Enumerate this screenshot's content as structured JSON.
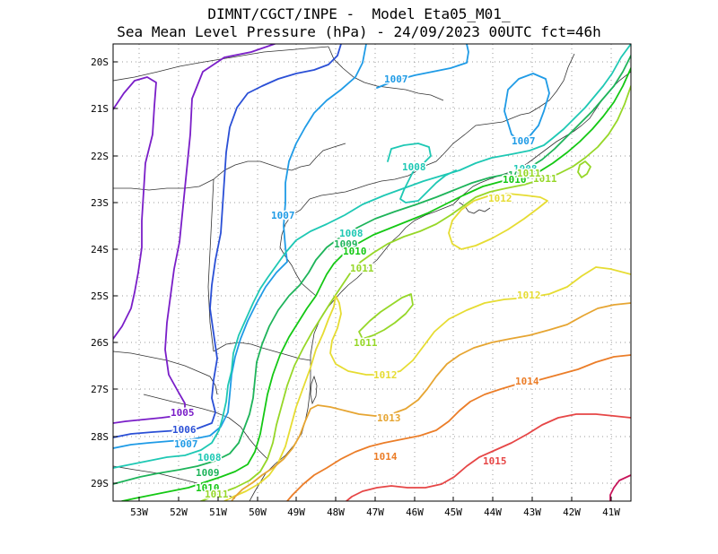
{
  "title": {
    "line1": "DIMNT/CGCT/INPE -  Model Eta05_M01_",
    "line2": "Sea Mean Level Pressure (hPa) - 24/09/2023 00UTC fct=46h"
  },
  "axes": {
    "lat_labels": [
      "20S",
      "21S",
      "22S",
      "23S",
      "24S",
      "25S",
      "26S",
      "27S",
      "28S",
      "29S"
    ],
    "lon_labels": [
      "53W",
      "52W",
      "51W",
      "50W",
      "49W",
      "48W",
      "47W",
      "46W",
      "45W",
      "44W",
      "43W",
      "42W",
      "41W"
    ]
  },
  "contour_labels": [
    {
      "text": "1005",
      "color": "#7a1ec8"
    },
    {
      "text": "1006",
      "color": "#2a4fd6"
    },
    {
      "text": "1007",
      "color": "#1f9be6"
    },
    {
      "text": "1007",
      "color": "#1f9be6"
    },
    {
      "text": "1007",
      "color": "#1f9be6"
    },
    {
      "text": "1007",
      "color": "#1f9be6"
    },
    {
      "text": "1008",
      "color": "#1ec8b4"
    },
    {
      "text": "1008",
      "color": "#1ec8b4"
    },
    {
      "text": "1008",
      "color": "#1ec8b4"
    },
    {
      "text": "1008",
      "color": "#1ec8b4"
    },
    {
      "text": "1009",
      "color": "#1eb45a"
    },
    {
      "text": "1009",
      "color": "#1eb45a"
    },
    {
      "text": "1009",
      "color": "#1eb45a"
    },
    {
      "text": "1010",
      "color": "#14c814"
    },
    {
      "text": "1010",
      "color": "#14c814"
    },
    {
      "text": "1010",
      "color": "#14c814"
    },
    {
      "text": "1011",
      "color": "#96d728"
    },
    {
      "text": "1011",
      "color": "#96d728"
    },
    {
      "text": "1011",
      "color": "#96d728"
    },
    {
      "text": "1011",
      "color": "#96d728"
    },
    {
      "text": "1011",
      "color": "#96d728"
    },
    {
      "text": "1012",
      "color": "#e6dc32"
    },
    {
      "text": "1012",
      "color": "#e6dc32"
    },
    {
      "text": "1012",
      "color": "#e6dc32"
    },
    {
      "text": "1013",
      "color": "#e6a532"
    },
    {
      "text": "1014",
      "color": "#eb7d28"
    },
    {
      "text": "1014",
      "color": "#eb7d28"
    },
    {
      "text": "1015",
      "color": "#e64646"
    }
  ],
  "colors": {
    "c1005": "#7a1ec8",
    "c1006": "#2a4fd6",
    "c1007": "#1f9be6",
    "c1008": "#1ec8b4",
    "c1009": "#1eb45a",
    "c1010": "#14c814",
    "c1011": "#96d728",
    "c1012": "#e6dc32",
    "c1013": "#e6a532",
    "c1014": "#eb7d28",
    "c1015": "#e64646",
    "c1016": "#c8145a"
  }
}
